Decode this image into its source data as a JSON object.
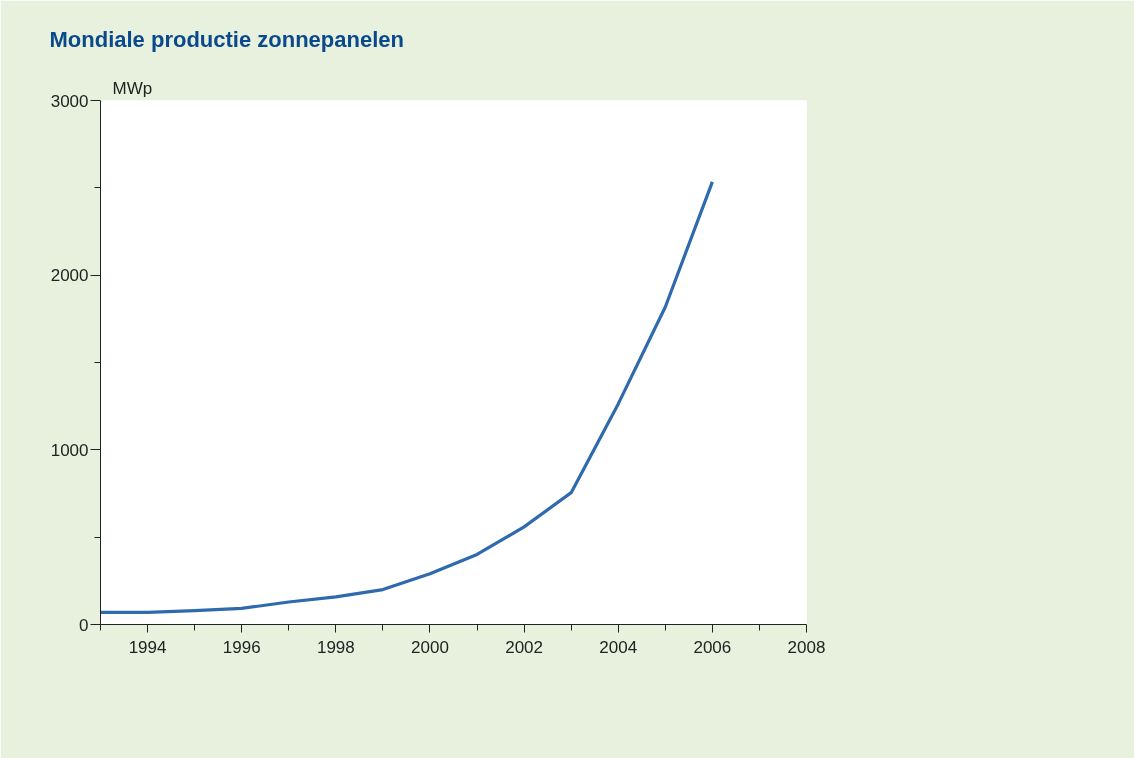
{
  "chart_data": {
    "type": "line",
    "title": "Mondiale productie zonnepanelen",
    "ylabel": "MWp",
    "x": [
      1993,
      1994,
      1995,
      1996,
      1997,
      1998,
      1999,
      2000,
      2001,
      2002,
      2003,
      2004,
      2005,
      2006
    ],
    "series": [
      {
        "color": "#2e6aad",
        "values": [
          69,
          69,
          79,
          92,
          129,
          158,
          200,
          290,
          401,
          559,
          755,
          1263,
          1818,
          2534
        ]
      }
    ],
    "xlim": [
      1993,
      2008
    ],
    "xticks": [
      {
        "value": 1993,
        "label": null
      },
      1994,
      {
        "value": 1995,
        "label": null
      },
      1996,
      {
        "value": 1997,
        "label": null
      },
      1998,
      {
        "value": 1999,
        "label": null
      },
      2000,
      {
        "value": 2001,
        "label": null
      },
      2002,
      {
        "value": 2003,
        "label": null
      },
      2004,
      {
        "value": 2005,
        "label": null
      },
      2006,
      {
        "value": 2007,
        "label": null
      },
      2008
    ],
    "ylim": [
      0,
      3000
    ],
    "yticks": [
      0,
      {
        "value": 500,
        "label": null
      },
      1000,
      {
        "value": 1500,
        "label": null
      },
      2000,
      {
        "value": 2500,
        "label": null
      },
      3000
    ],
    "grid": false,
    "marker": "none",
    "line_style": "solid"
  }
}
